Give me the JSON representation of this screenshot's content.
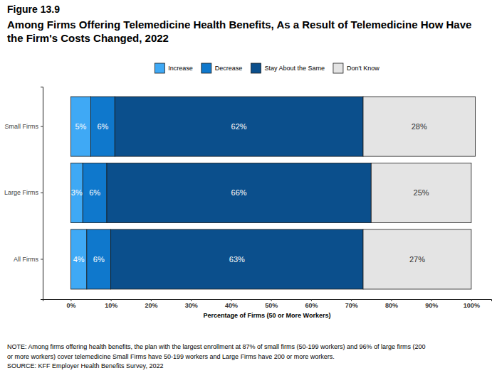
{
  "chart_data": {
    "type": "bar",
    "orientation": "horizontal",
    "stacked": true,
    "data_labels": true,
    "grid": false,
    "legend": "top",
    "figure": "Figure 13.9",
    "title": [
      "Among Firms Offering Telemedicine Health Benefits, As a Result of Telemedicine How Have",
      "the Firm's Costs Changed, 2022"
    ],
    "categories": [
      "Small Firms",
      "Large Firms",
      "All Firms"
    ],
    "series": [
      {
        "name": "Increase",
        "color": "#3fa9f5",
        "values": [
          5,
          3,
          4
        ],
        "value_labels": [
          "5%",
          "3%",
          "4%"
        ]
      },
      {
        "name": "Decrease",
        "color": "#0f78cc",
        "values": [
          6,
          6,
          6
        ],
        "value_labels": [
          "6%",
          "6%",
          "6%"
        ]
      },
      {
        "name": "Stay About the Same",
        "color": "#0b4f8c",
        "values": [
          62,
          66,
          63
        ],
        "value_labels": [
          "62%",
          "66%",
          "63%"
        ]
      },
      {
        "name": "Don't Know",
        "color": "#e4e4e4",
        "values": [
          28,
          25,
          27
        ],
        "value_labels": [
          "28%",
          "25%",
          "27%"
        ]
      }
    ],
    "xlabel": "Percentage of Firms (50 or More Workers)",
    "xlim": [
      -7,
      105
    ],
    "xticks": [
      {
        "value": 0,
        "label": "0%"
      },
      {
        "value": 10,
        "label": "10%"
      },
      {
        "value": 20,
        "label": "20%"
      },
      {
        "value": 30,
        "label": "30%"
      },
      {
        "value": 40,
        "label": "40%"
      },
      {
        "value": 50,
        "label": "50%"
      },
      {
        "value": 60,
        "label": "60%"
      },
      {
        "value": 70,
        "label": "70%"
      },
      {
        "value": 80,
        "label": "80%"
      },
      {
        "value": 90,
        "label": "90%"
      },
      {
        "value": 100,
        "label": "100%"
      }
    ],
    "notes": [
      "NOTE: Among firms offering health benefits, the plan with the largest enrollment at 87% of small firms (50-199 workers) and 96% of large firms (200",
      "or more workers) cover telemedicine Small Firms have 50-199 workers and Large Firms have 200 or more workers.",
      "SOURCE: KFF Employer Health Benefits Survey, 2022"
    ]
  }
}
